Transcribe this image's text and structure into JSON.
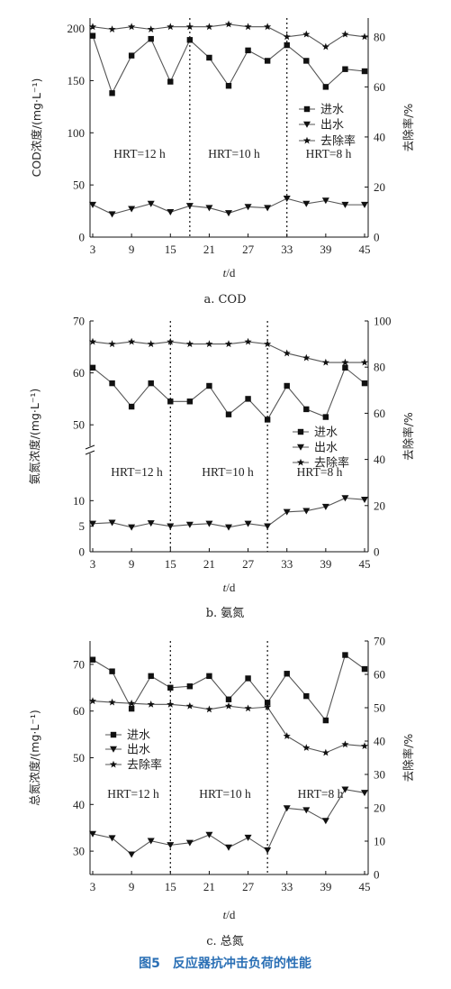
{
  "figure_title": "图5　反应器抗冲击负荷的性能",
  "chart_data": [
    {
      "type": "line",
      "caption": "a. COD",
      "xlabel": "t/d",
      "ylabel": "COD浓度/(mg·L⁻¹)",
      "y2label": "去除率/%",
      "x": [
        3,
        6,
        9,
        12,
        15,
        18,
        21,
        24,
        27,
        30,
        33,
        36,
        39,
        42,
        45
      ],
      "xticks": [
        "3",
        "9",
        "15",
        "21",
        "27",
        "33",
        "39",
        "45"
      ],
      "ylim": [
        0,
        210
      ],
      "yticks": [
        "0",
        "50",
        "100",
        "150",
        "200"
      ],
      "y2lim": [
        0,
        87.5
      ],
      "y2ticks": [
        "0",
        "20",
        "40",
        "60",
        "80"
      ],
      "phase_dividers_x": [
        18,
        33
      ],
      "phases": [
        "HRT=12 h",
        "HRT=10 h",
        "HRT=8 h"
      ],
      "legend": [
        "进水",
        "出水",
        "去除率"
      ],
      "series": [
        {
          "name": "进水",
          "axis": "left",
          "marker": "square",
          "values": [
            193,
            138,
            174,
            190,
            149,
            189,
            172,
            145,
            179,
            169,
            184,
            169,
            144,
            161,
            159
          ]
        },
        {
          "name": "出水",
          "axis": "left",
          "marker": "triangle-down",
          "values": [
            31,
            22,
            27,
            32,
            24,
            30,
            28,
            23,
            29,
            28,
            37,
            32,
            35,
            31,
            31
          ]
        },
        {
          "name": "去除率",
          "axis": "right",
          "marker": "star",
          "values": [
            84,
            83,
            84,
            83,
            84,
            84,
            84,
            85,
            84,
            84,
            80,
            81,
            76,
            81,
            80
          ]
        }
      ]
    },
    {
      "type": "line",
      "caption": "b. 氨氮",
      "xlabel": "t/d",
      "ylabel": "氨氮浓度/(mg·L⁻¹)",
      "y2label": "去除率/%",
      "x": [
        3,
        6,
        9,
        12,
        15,
        18,
        21,
        24,
        27,
        30,
        33,
        36,
        39,
        42,
        45
      ],
      "xticks": [
        "3",
        "9",
        "15",
        "21",
        "27",
        "33",
        "39",
        "45"
      ],
      "ylim_lower": [
        0,
        15
      ],
      "ylim_upper": [
        45,
        70
      ],
      "yticks_lower": [
        "0",
        "5",
        "10"
      ],
      "yticks_upper": [
        "50",
        "60",
        "70"
      ],
      "axis_break": true,
      "y2lim": [
        0,
        100
      ],
      "y2ticks": [
        "0",
        "20",
        "40",
        "60",
        "80",
        "100"
      ],
      "phase_dividers_x": [
        15,
        30
      ],
      "phases": [
        "HRT=12 h",
        "HRT=10 h",
        "HRT=8 h"
      ],
      "legend": [
        "进水",
        "出水",
        "去除率"
      ],
      "series": [
        {
          "name": "进水",
          "axis": "left",
          "marker": "square",
          "values": [
            61,
            58,
            53.5,
            58,
            54.5,
            54.5,
            57.5,
            52,
            55,
            51,
            57.5,
            53,
            51.5,
            61,
            58
          ]
        },
        {
          "name": "出水",
          "axis": "left",
          "marker": "triangle-down",
          "values": [
            5.5,
            5.7,
            4.8,
            5.6,
            5.0,
            5.3,
            5.5,
            4.8,
            5.5,
            5.0,
            7.8,
            8.0,
            8.8,
            10.5,
            10.2
          ]
        },
        {
          "name": "去除率",
          "axis": "right",
          "marker": "star",
          "values": [
            91,
            90,
            91,
            90,
            91,
            90,
            90,
            90,
            91,
            90,
            86,
            84,
            82,
            82,
            82
          ]
        }
      ]
    },
    {
      "type": "line",
      "caption": "c. 总氮",
      "xlabel": "t/d",
      "ylabel": "总氮浓度/(mg·L⁻¹)",
      "y2label": "去除率/%",
      "x": [
        3,
        6,
        9,
        12,
        15,
        18,
        21,
        24,
        27,
        30,
        33,
        36,
        39,
        42,
        45
      ],
      "xticks": [
        "3",
        "9",
        "15",
        "21",
        "27",
        "33",
        "39",
        "45"
      ],
      "ylim": [
        25,
        75
      ],
      "yticks": [
        "30",
        "40",
        "50",
        "60",
        "70"
      ],
      "y2lim": [
        0,
        70
      ],
      "y2ticks": [
        "0",
        "10",
        "20",
        "30",
        "40",
        "50",
        "60",
        "70"
      ],
      "phase_dividers_x": [
        15,
        30
      ],
      "phases": [
        "HRT=12 h",
        "HRT=10 h",
        "HRT=8 h"
      ],
      "legend": [
        "进水",
        "出水",
        "去除率"
      ],
      "series": [
        {
          "name": "进水",
          "axis": "left",
          "marker": "square",
          "values": [
            71,
            68.5,
            60.5,
            67.5,
            65,
            65.3,
            67.5,
            62.5,
            67,
            61.8,
            68,
            63.2,
            58,
            72,
            69
          ]
        },
        {
          "name": "出水",
          "axis": "left",
          "marker": "triangle-down",
          "values": [
            33.7,
            32.8,
            29.3,
            32.2,
            31.3,
            31.8,
            33.5,
            30.8,
            32.9,
            30.2,
            39.2,
            38.8,
            36.5,
            43.2,
            42.5
          ]
        },
        {
          "name": "去除率",
          "axis": "right",
          "marker": "star",
          "values": [
            52,
            51.6,
            51.3,
            51,
            51,
            50.5,
            49.5,
            50.5,
            49.8,
            50.2,
            41.5,
            38,
            36.5,
            39,
            38.5
          ]
        }
      ]
    }
  ]
}
